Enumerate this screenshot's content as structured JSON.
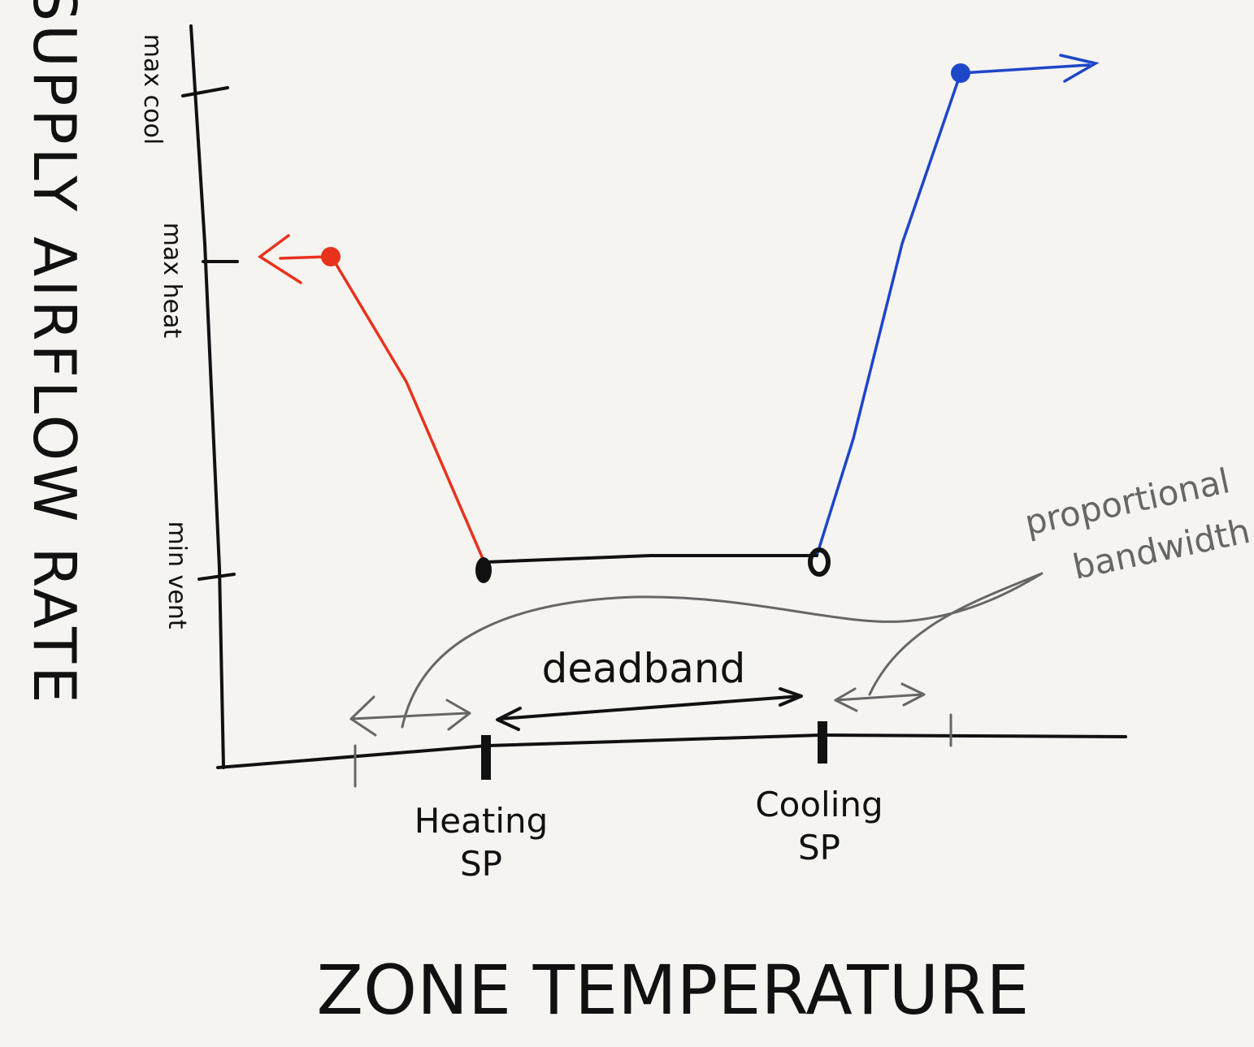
{
  "axes": {
    "y_label": "SUPPLY AIRFLOW RATE",
    "x_label": "ZONE TEMPERATURE"
  },
  "y_ticks": [
    "max cool",
    "max heat",
    "min vent"
  ],
  "x_ticks": [
    {
      "lines": [
        "Heating",
        "SP"
      ]
    },
    {
      "lines": [
        "Cooling",
        "SP"
      ]
    }
  ],
  "annotations": {
    "deadband": "deadband",
    "bandwidth": {
      "lines": [
        "proportional",
        "bandwidth"
      ]
    }
  }
}
